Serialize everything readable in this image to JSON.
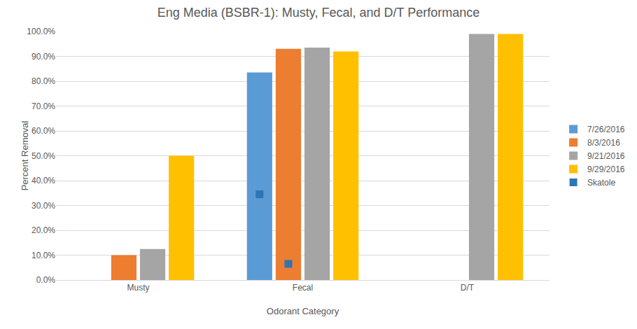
{
  "chart_data": {
    "type": "bar",
    "title": "Eng Media (BSBR-1): Musty, Fecal, and D/T Performance",
    "x_label": "Odorant Category",
    "y_label": "Percent Removal",
    "categories": [
      "Musty",
      "Fecal",
      "D/T"
    ],
    "series": [
      {
        "name": "7/26/2016",
        "color": "#5b9bd5",
        "values": [
          null,
          83.5,
          null
        ]
      },
      {
        "name": "8/3/2016",
        "color": "#ed7d31",
        "values": [
          10.0,
          93.0,
          null
        ]
      },
      {
        "name": "9/21/2016",
        "color": "#a5a5a5",
        "values": [
          12.5,
          93.5,
          99.0
        ]
      },
      {
        "name": "9/29/2016",
        "color": "#ffc000",
        "values": [
          50.0,
          92.0,
          99.0
        ]
      },
      {
        "name": "Skatole",
        "type": "scatter",
        "marker": "square",
        "color": "#2e75b6",
        "points": [
          {
            "category": "Fecal",
            "series": "7/26/2016",
            "value": 34.5
          },
          {
            "category": "Fecal",
            "series": "8/3/2016",
            "value": 6.5
          }
        ]
      }
    ],
    "ylim": [
      0,
      100
    ],
    "yticks": [
      {
        "value": 0,
        "label": "0.0%"
      },
      {
        "value": 10,
        "label": "10.0%"
      },
      {
        "value": 20,
        "label": "20.0%"
      },
      {
        "value": 30,
        "label": "30.0%"
      },
      {
        "value": 40,
        "label": "40.0%"
      },
      {
        "value": 50,
        "label": "50.0%"
      },
      {
        "value": 60,
        "label": "60.0%"
      },
      {
        "value": 70,
        "label": "70.0%"
      },
      {
        "value": 80,
        "label": "80.0%"
      },
      {
        "value": 90,
        "label": "90.0%"
      },
      {
        "value": 100,
        "label": "100.0%"
      }
    ],
    "grid": true,
    "legend": "right"
  }
}
